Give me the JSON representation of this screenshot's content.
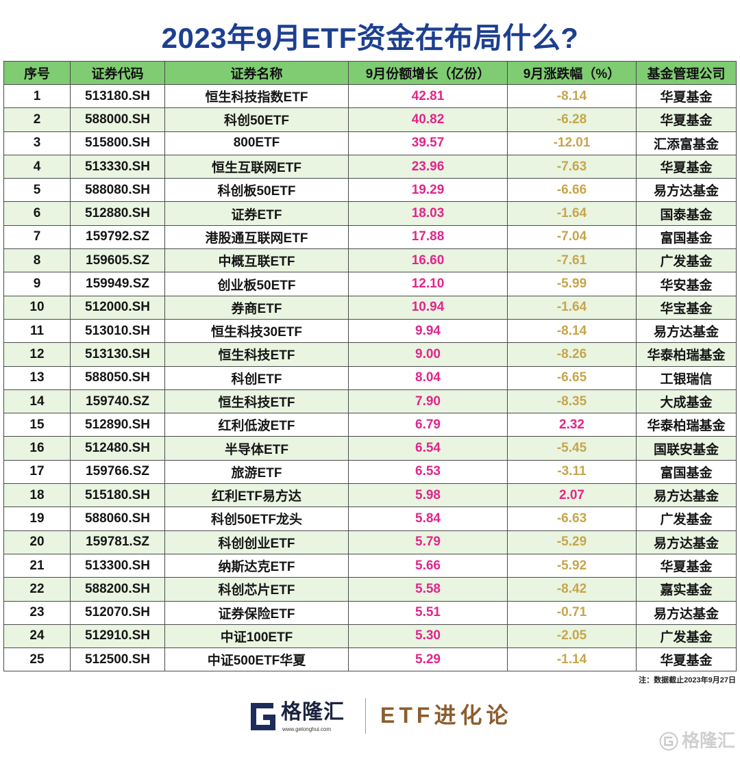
{
  "chart_data": {
    "type": "table",
    "title": "2023年9月ETF资金在布局什么?",
    "columns": [
      "序号",
      "证券代码",
      "证券名称",
      "9月份额增长（亿份）",
      "9月涨跌幅（%）",
      "基金管理公司"
    ],
    "rows": [
      [
        1,
        "513180.SH",
        "恒生科技指数ETF",
        42.81,
        -8.14,
        "华夏基金"
      ],
      [
        2,
        "588000.SH",
        "科创50ETF",
        40.82,
        -6.28,
        "华夏基金"
      ],
      [
        3,
        "515800.SH",
        "800ETF",
        39.57,
        -12.01,
        "汇添富基金"
      ],
      [
        4,
        "513330.SH",
        "恒生互联网ETF",
        23.96,
        -7.63,
        "华夏基金"
      ],
      [
        5,
        "588080.SH",
        "科创板50ETF",
        19.29,
        -6.66,
        "易方达基金"
      ],
      [
        6,
        "512880.SH",
        "证券ETF",
        18.03,
        -1.64,
        "国泰基金"
      ],
      [
        7,
        "159792.SZ",
        "港股通互联网ETF",
        17.88,
        -7.04,
        "富国基金"
      ],
      [
        8,
        "159605.SZ",
        "中概互联ETF",
        16.6,
        -7.61,
        "广发基金"
      ],
      [
        9,
        "159949.SZ",
        "创业板50ETF",
        12.1,
        -5.99,
        "华安基金"
      ],
      [
        10,
        "512000.SH",
        "券商ETF",
        10.94,
        -1.64,
        "华宝基金"
      ],
      [
        11,
        "513010.SH",
        "恒生科技30ETF",
        9.94,
        -8.14,
        "易方达基金"
      ],
      [
        12,
        "513130.SH",
        "恒生科技ETF",
        9.0,
        -8.26,
        "华泰柏瑞基金"
      ],
      [
        13,
        "588050.SH",
        "科创ETF",
        8.04,
        -6.65,
        "工银瑞信"
      ],
      [
        14,
        "159740.SZ",
        "恒生科技ETF",
        7.9,
        -8.35,
        "大成基金"
      ],
      [
        15,
        "512890.SH",
        "红利低波ETF",
        6.79,
        2.32,
        "华泰柏瑞基金"
      ],
      [
        16,
        "512480.SH",
        "半导体ETF",
        6.54,
        -5.45,
        "国联安基金"
      ],
      [
        17,
        "159766.SZ",
        "旅游ETF",
        6.53,
        -3.11,
        "富国基金"
      ],
      [
        18,
        "515180.SH",
        "红利ETF易方达",
        5.98,
        2.07,
        "易方达基金"
      ],
      [
        19,
        "588060.SH",
        "科创50ETF龙头",
        5.84,
        -6.63,
        "广发基金"
      ],
      [
        20,
        "159781.SZ",
        "科创创业ETF",
        5.79,
        -5.29,
        "易方达基金"
      ],
      [
        21,
        "513300.SH",
        "纳斯达克ETF",
        5.66,
        -5.92,
        "华夏基金"
      ],
      [
        22,
        "588200.SH",
        "科创芯片ETF",
        5.58,
        -8.42,
        "嘉实基金"
      ],
      [
        23,
        "512070.SH",
        "证券保险ETF",
        5.51,
        -0.71,
        "易方达基金"
      ],
      [
        24,
        "512910.SH",
        "中证100ETF",
        5.3,
        -2.05,
        "广发基金"
      ],
      [
        25,
        "512500.SH",
        "中证500ETF华夏",
        5.29,
        -1.14,
        "华夏基金"
      ]
    ]
  },
  "note": "注：数据截止2023年9月27日",
  "footer": {
    "logo_icon": "g-logo-icon",
    "brand_name": "格隆汇",
    "brand_url": "www.gelonghui.com",
    "column_name": "ETF进化论"
  },
  "watermark": {
    "icon": "g-circle-icon",
    "text": "格隆汇"
  },
  "colors": {
    "title": "#1d3f8f",
    "header_bg": "#7fcc72",
    "stripe_bg": "#e9f4e1",
    "share_growth": "#e3248b",
    "pct_decline": "#c6a54c",
    "pct_rise": "#e3248b",
    "column_name": "#8c5d2e"
  }
}
